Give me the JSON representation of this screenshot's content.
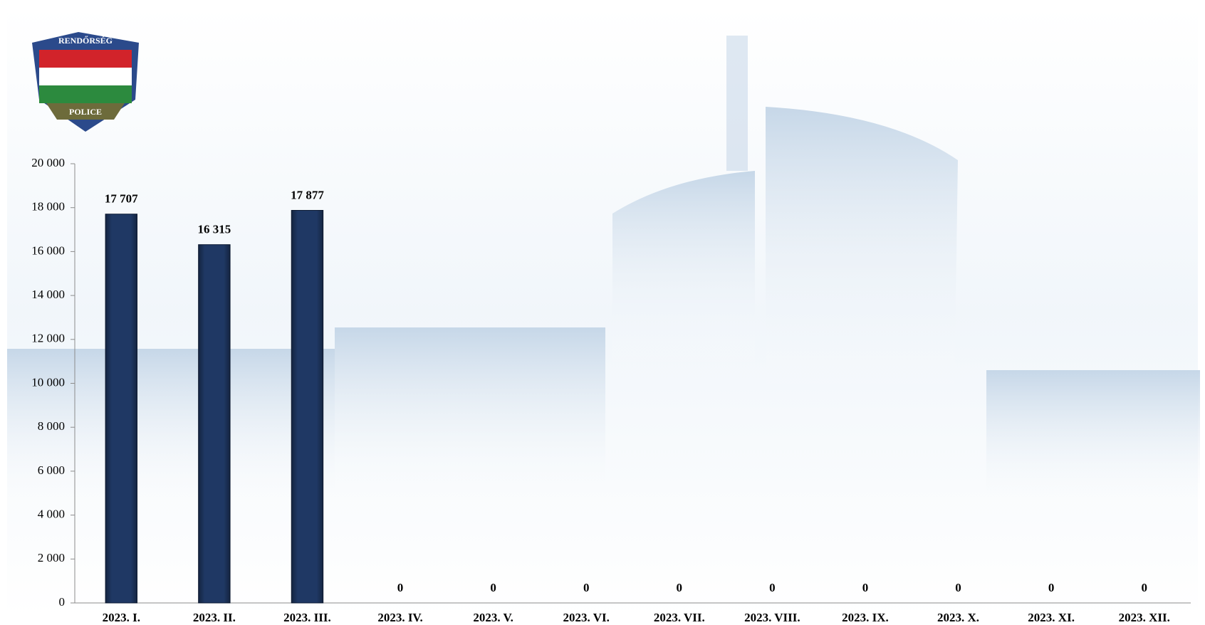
{
  "logo": {
    "top_text": "RENDŐRSÉG",
    "bottom_text": "POLICE"
  },
  "chart_data": {
    "type": "bar",
    "categories": [
      "2023. I.",
      "2023. II.",
      "2023. III.",
      "2023. IV.",
      "2023. V.",
      "2023. VI.",
      "2023. VII.",
      "2023. VIII.",
      "2023. IX.",
      "2023. X.",
      "2023. XI.",
      "2023. XII."
    ],
    "values": [
      17707,
      16315,
      17877,
      0,
      0,
      0,
      0,
      0,
      0,
      0,
      0,
      0
    ],
    "value_labels": [
      "17 707",
      "16 315",
      "17 877",
      "0",
      "0",
      "0",
      "0",
      "0",
      "0",
      "0",
      "0",
      "0"
    ],
    "color": "#1f3864",
    "ylim": [
      0,
      20000
    ],
    "yticks": [
      0,
      {
        "value": 2000,
        "label": "2 000"
      },
      {
        "value": 4000,
        "label": "4 000"
      },
      {
        "value": 6000,
        "label": "6 000"
      },
      {
        "value": 8000,
        "label": "8 000"
      },
      {
        "value": 10000,
        "label": "10 000"
      },
      {
        "value": 12000,
        "label": "12 000"
      },
      {
        "value": 14000,
        "label": "14 000"
      },
      {
        "value": 16000,
        "label": "16 000"
      },
      {
        "value": 18000,
        "label": "18 000"
      },
      {
        "value": 20000,
        "label": "20 000"
      }
    ],
    "grid": false
  }
}
